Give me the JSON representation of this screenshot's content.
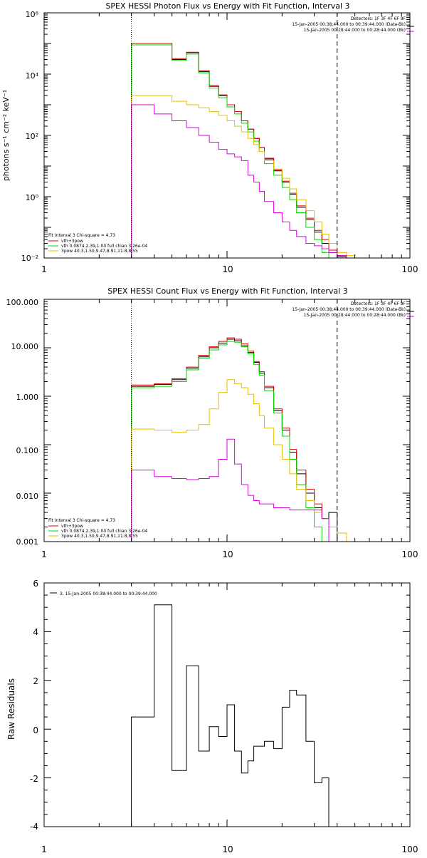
{
  "panels": [
    {
      "title": "SPEX HESSI Photon Flux vs Energy with Fit Function, Interval 3",
      "ylabel": "photons s⁻¹ cm⁻² keV⁻¹",
      "xlabel": "",
      "x_ticks": [
        "1",
        "10",
        "100"
      ],
      "y_ticks": [
        "10⁻²",
        "10⁰",
        "10²",
        "10⁴",
        "10⁶"
      ],
      "info_lines": [
        "Detectors: 1F 3F 4F 6F 9F",
        "15-Jan-2005 00:38:44.000 to 00:39:44.000 (Data-Bk)",
        "15-Jan-2005 00:28:44.000 to 00:28:44.000 (Bk)"
      ],
      "fit_legend": [
        "Fit Interval 3   Chi-square = 4.73",
        "vth+3pow",
        "vth 0.0874,2.39,1.00  full chian 3.26e-04",
        "3pow 40.3,1.50,9.47,8.91,11.8,8.55"
      ]
    },
    {
      "title": "SPEX HESSI Count Flux vs Energy with Fit Function, Interval 3",
      "ylabel": "",
      "xlabel": "",
      "x_ticks": [
        "1",
        "10",
        "100"
      ],
      "y_ticks": [
        "0.001",
        "0.010",
        "0.100",
        "1.000",
        "10.000",
        "100.000"
      ],
      "info_lines": [
        "Detectors: 1F 3F 4F 6F 9F",
        "15-Jan-2005 00:38:44.000 to 00:39:44.000 (Data-Bk)",
        "15-Jan-2005 00:28:44.000 to 00:28:44.000 (Bk)"
      ],
      "fit_legend": [
        "Fit Interval 3   Chi-square = 4.73",
        "vth+3pow",
        "vth 0.0874,2.39,1.00  full chian 3.26e-04",
        "3pow 40.3,1.50,9.47,8.91,11.8,8.55"
      ]
    },
    {
      "title": "",
      "ylabel": "Raw Residuals",
      "xlabel": "",
      "x_ticks": [
        "1",
        "10",
        "100"
      ],
      "y_ticks": [
        "-4",
        "-2",
        "0",
        "2",
        "4",
        "6"
      ],
      "info_lines": [],
      "fit_legend": [],
      "residual_legend": "3, 15-Jan-2005 00:38:44.000 to 00:39:44.000"
    }
  ],
  "chart_data": [
    {
      "type": "line",
      "step": true,
      "xscale": "log",
      "yscale": "log",
      "xlim": [
        1,
        100
      ],
      "ylim": [
        0.01,
        1000000
      ],
      "vlines": [
        {
          "x": 3.0,
          "style": "dotted"
        },
        {
          "x": 40.0,
          "style": "dashed"
        }
      ],
      "edges": [
        3.0,
        4.0,
        5.0,
        6.0,
        7.0,
        8.0,
        9.0,
        10.0,
        11.0,
        12.0,
        13.0,
        14.0,
        15.0,
        16.0,
        18.0,
        20.0,
        22.0,
        24.0,
        27.0,
        30.0,
        33.0,
        36.0,
        40.0,
        45.0,
        50.0
      ],
      "series": [
        {
          "color": "#000000",
          "values": [
            100000,
            100000,
            30000,
            50000,
            12000,
            4000,
            2000,
            1000,
            600,
            300,
            160,
            80,
            40,
            17,
            7,
            3,
            1.2,
            0.45,
            0.18,
            0.07,
            0.03,
            0.015,
            0.011,
            null
          ]
        },
        {
          "color": "#e00000",
          "values": [
            100000,
            100000,
            32000,
            52000,
            13000,
            4200,
            2100,
            1000,
            600,
            300,
            160,
            80,
            40,
            18,
            7.5,
            3.2,
            1.3,
            0.5,
            0.2,
            0.08,
            0.04,
            0.018,
            0.012,
            null
          ]
        },
        {
          "color": "#00dd00",
          "values": [
            90000,
            90000,
            28000,
            45000,
            11000,
            3500,
            1700,
            850,
            500,
            250,
            130,
            65,
            30,
            12,
            5,
            2,
            0.8,
            0.3,
            0.1,
            0.04,
            0.015,
            null,
            null,
            null
          ]
        },
        {
          "color": "#e6c000",
          "values": [
            2000,
            2000,
            1300,
            1000,
            800,
            600,
            450,
            300,
            200,
            130,
            80,
            50,
            30,
            15,
            8,
            4,
            1.8,
            0.8,
            0.35,
            0.15,
            0.06,
            0.03,
            0.015,
            0.012
          ]
        },
        {
          "color": "#e000e0",
          "values": [
            1000,
            500,
            300,
            180,
            100,
            60,
            35,
            25,
            20,
            15,
            5,
            3,
            1.5,
            0.7,
            0.3,
            0.15,
            0.08,
            0.05,
            0.03,
            0.025,
            0.02,
            0.015,
            0.012,
            null
          ]
        }
      ]
    },
    {
      "type": "line",
      "step": true,
      "xscale": "log",
      "yscale": "log",
      "xlim": [
        1,
        100
      ],
      "ylim": [
        0.001,
        100
      ],
      "vlines": [
        {
          "x": 3.0,
          "style": "dotted"
        },
        {
          "x": 40.0,
          "style": "dashed"
        }
      ],
      "edges": [
        3.0,
        4.0,
        5.0,
        6.0,
        7.0,
        8.0,
        9.0,
        10.0,
        11.0,
        12.0,
        13.0,
        14.0,
        15.0,
        16.0,
        18.0,
        20.0,
        22.0,
        24.0,
        27.0,
        30.0,
        33.0,
        36.0,
        40.0,
        45.0,
        50.0
      ],
      "series": [
        {
          "color": "#000000",
          "values": [
            1.6,
            1.75,
            2.2,
            3.8,
            6.5,
            10,
            12.5,
            15,
            14,
            11,
            8,
            5,
            3,
            1.5,
            0.5,
            0.2,
            0.07,
            0.025,
            0.01,
            0.005,
            0.003,
            0.004,
            null,
            null
          ]
        },
        {
          "color": "#e00000",
          "values": [
            1.7,
            1.8,
            2.3,
            4.0,
            7.0,
            10.5,
            13.5,
            16,
            15,
            12,
            8.5,
            5.2,
            3.2,
            1.6,
            0.55,
            0.22,
            0.08,
            0.03,
            0.012,
            0.006,
            0.003,
            null,
            null,
            null
          ]
        },
        {
          "color": "#00dd00",
          "values": [
            1.5,
            1.6,
            2.0,
            3.5,
            6.0,
            9,
            11.5,
            13.5,
            13,
            10.5,
            7.5,
            4.5,
            2.7,
            1.3,
            0.45,
            0.15,
            0.05,
            0.015,
            0.005,
            0.002,
            null,
            null,
            null,
            null
          ]
        },
        {
          "color": "#e6c000",
          "values": [
            0.21,
            0.2,
            0.18,
            0.2,
            0.26,
            0.55,
            1.2,
            2.2,
            1.8,
            1.5,
            1.1,
            0.7,
            0.4,
            0.22,
            0.1,
            0.05,
            0.025,
            0.012,
            0.007,
            0.004,
            0.003,
            0.002,
            0.0015,
            0.001
          ]
        },
        {
          "color": "#e000e0",
          "values": [
            0.03,
            0.022,
            0.02,
            0.019,
            0.02,
            0.022,
            0.05,
            0.13,
            0.04,
            0.015,
            0.009,
            0.007,
            0.006,
            0.006,
            0.005,
            0.005,
            0.0045,
            0.0045,
            0.0045,
            0.0045,
            0.003,
            null,
            null,
            null
          ]
        }
      ]
    },
    {
      "type": "line",
      "step": true,
      "xscale": "log",
      "yscale": "linear",
      "xlim": [
        1,
        100
      ],
      "ylim": [
        -4,
        6
      ],
      "edges": [
        3.0,
        4.0,
        5.0,
        6.0,
        7.0,
        8.0,
        9.0,
        10.0,
        11.0,
        12.0,
        13.0,
        14.0,
        15.0,
        16.0,
        18.0,
        20.0,
        22.0,
        24.0,
        27.0,
        30.0,
        33.0,
        36.0,
        40.0
      ],
      "series": [
        {
          "color": "#000000",
          "values": [
            0.5,
            5.1,
            -1.7,
            2.6,
            -0.9,
            0.1,
            -0.3,
            1.0,
            -0.9,
            -1.8,
            -1.3,
            -0.7,
            -0.7,
            -0.5,
            -0.8,
            0.9,
            1.6,
            1.4,
            -0.5,
            -2.2,
            -2.0,
            null
          ]
        }
      ]
    }
  ]
}
